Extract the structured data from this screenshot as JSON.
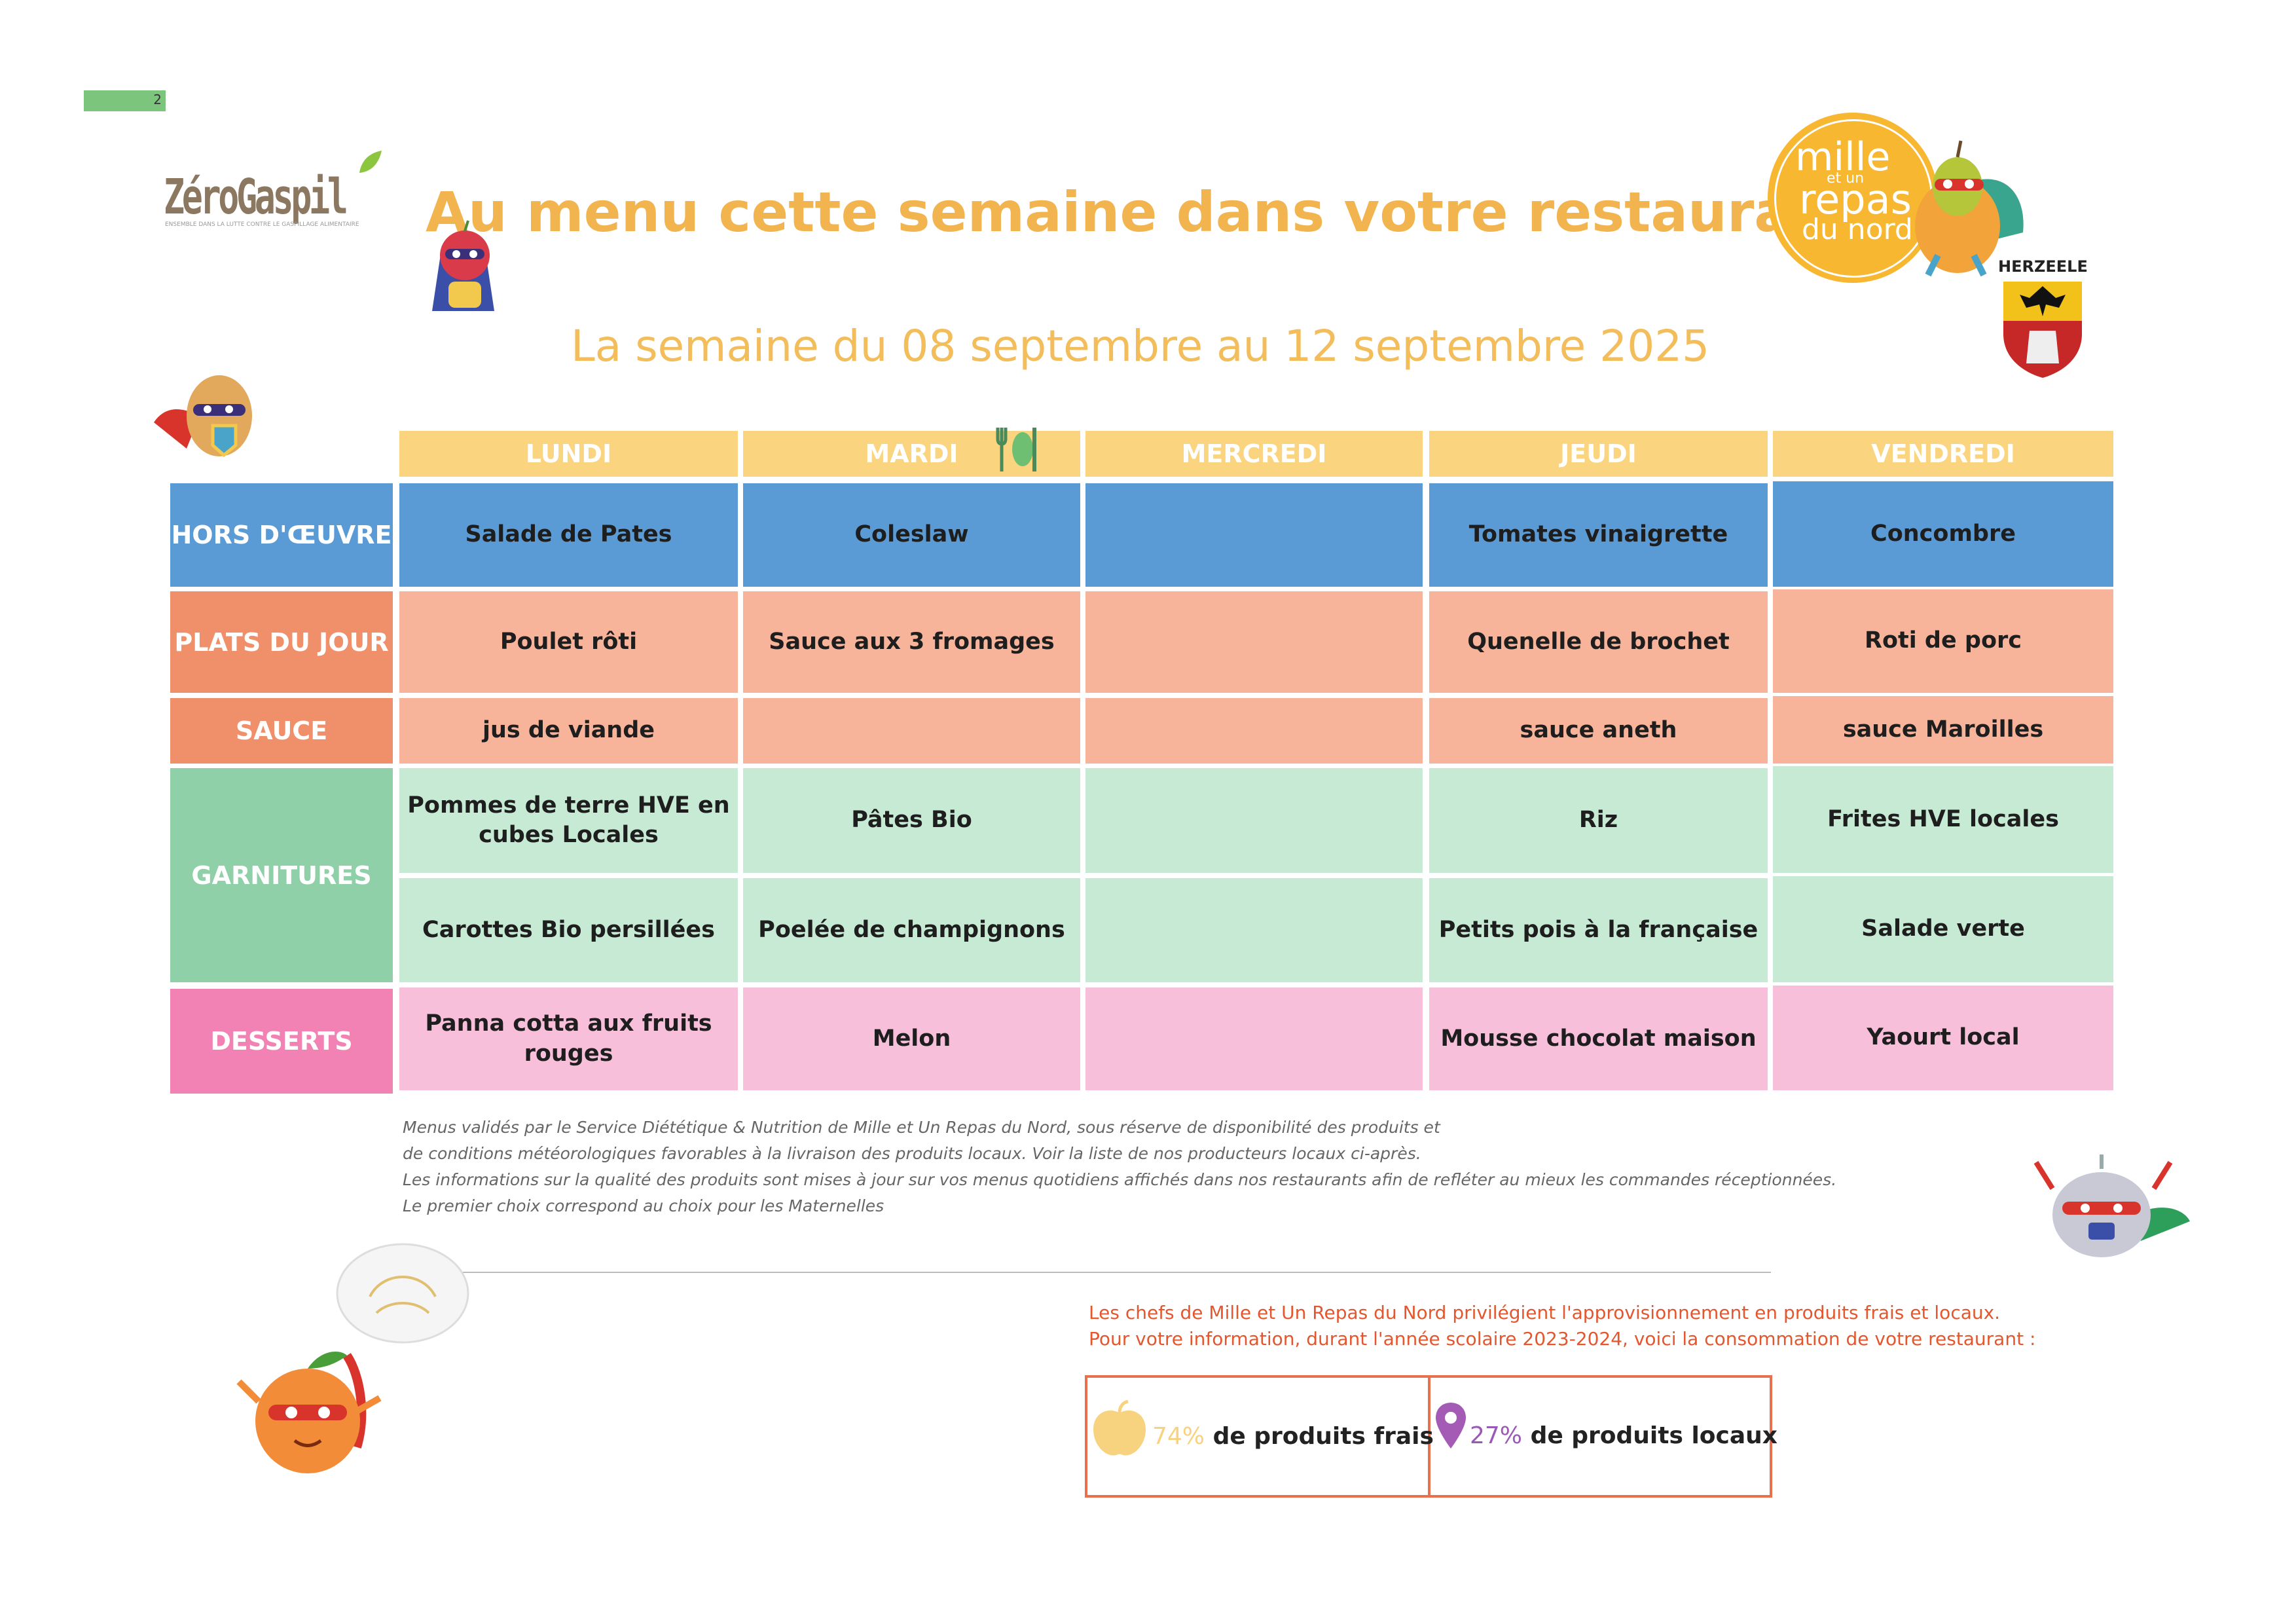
{
  "page": {
    "number": "2"
  },
  "logo": {
    "name": "ZéroGaspil",
    "tagline": "ENSEMBLE DANS LA LUTTE CONTRE LE GASPILLAGE ALIMENTAIRE"
  },
  "header": {
    "title": "Au menu cette semaine dans votre restaurant",
    "week": "La semaine du 08 septembre au 12 septembre 2025"
  },
  "brand": {
    "line1": "mille",
    "line2": "et un",
    "line3": "repas",
    "line4": "du nord",
    "town": "HERZEELE"
  },
  "menu": {
    "days": [
      "LUNDI",
      "MARDI",
      "MERCREDI",
      "JEUDI",
      "VENDREDI"
    ],
    "categories": [
      {
        "label": "HORS D'ŒUVRE",
        "color": "#5b9bd5",
        "cell_color": "#5b9bd5",
        "items": [
          "Salade de Pates",
          "Coleslaw",
          "",
          "Tomates vinaigrette",
          "Concombre"
        ]
      },
      {
        "label": "PLATS DU JOUR",
        "color": "#f0906a",
        "cell_color": "#f7b49b",
        "items": [
          "Poulet rôti",
          "Sauce aux 3 fromages",
          "",
          "Quenelle de brochet",
          "Roti de porc"
        ]
      },
      {
        "label": "SAUCE",
        "color": "#f0906a",
        "cell_color": "#f7b49b",
        "items": [
          "jus de viande",
          "",
          "",
          "sauce aneth",
          "sauce Maroilles"
        ]
      },
      {
        "label": "GARNITURES",
        "color": "#8fd0a8",
        "cell_color": "#c7ead4",
        "items": [
          "Pommes de terre HVE en cubes Locales",
          "Pâtes Bio",
          "",
          "Riz",
          "Frites HVE locales"
        ],
        "items2": [
          "Carottes Bio persillées",
          "Poelée de champignons",
          "",
          "Petits pois à la française",
          "Salade verte"
        ]
      },
      {
        "label": "DESSERTS",
        "color": "#f282b4",
        "cell_color": "#f8bfdb",
        "items": [
          "Panna cotta aux fruits rouges",
          "Melon",
          "",
          "Mousse  chocolat maison",
          "Yaourt  local"
        ]
      }
    ]
  },
  "notes": [
    "Menus validés par le Service Diététique & Nutrition de Mille et Un Repas du Nord, sous réserve de disponibilité des produits et",
    "de conditions météorologiques favorables à la livraison des produits locaux. Voir la liste de nos producteurs locaux ci-après.",
    "Les informations sur la qualité des produits sont mises à jour sur vos menus quotidiens affichés dans nos restaurants afin de refléter au mieux les commandes réceptionnées.",
    "Le premier choix correspond au choix pour les Maternelles"
  ],
  "info": {
    "line1": "Les chefs de Mille et Un Repas du Nord privilégient l'approvisionnement en produits frais et locaux.",
    "line2": "Pour votre information, durant l'année scolaire 2023-2024, voici la consommation de votre restaurant :"
  },
  "stats": {
    "fresh_pct": "74%",
    "fresh_label": "de produits frais",
    "local_pct": "27%",
    "local_label": "de produits locaux"
  },
  "icons": [
    "apple-icon",
    "location-pin-icon",
    "cutlery-icon",
    "coat-of-arms-icon"
  ]
}
